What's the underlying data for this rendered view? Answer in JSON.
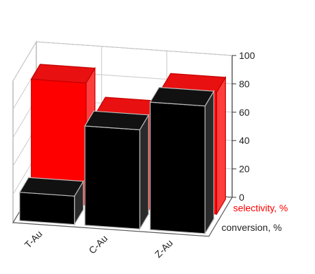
{
  "chart_data": {
    "type": "bar",
    "categories": [
      "T-Au",
      "C-Au",
      "Z-Au"
    ],
    "series": [
      {
        "name": "selectivity, %",
        "values": [
          86,
          66,
          86
        ]
      },
      {
        "name": "conversion, %",
        "values": [
          20,
          70,
          90
        ]
      }
    ],
    "ylim": [
      0,
      100
    ],
    "yticks": [
      0,
      20,
      40,
      60,
      80,
      100
    ],
    "grid": true
  },
  "colors": {
    "selectivity": "#ff0000",
    "conversion": "#000000"
  }
}
